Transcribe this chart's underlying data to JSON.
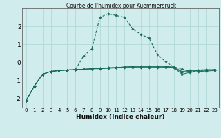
{
  "title": "Courbe de l'humidex pour Kuemmersruck",
  "xlabel": "Humidex (Indice chaleur)",
  "background_color": "#d0ecec",
  "grid_color": "#b0d8d8",
  "line_color": "#1a6b5a",
  "x_values": [
    0,
    1,
    2,
    3,
    4,
    5,
    6,
    7,
    8,
    9,
    10,
    11,
    12,
    13,
    14,
    15,
    16,
    17,
    18,
    19,
    20,
    21,
    22,
    23
  ],
  "series": [
    [
      -2.1,
      -1.3,
      -0.65,
      -0.5,
      -0.45,
      -0.42,
      -0.4,
      -0.38,
      -0.35,
      -0.35,
      -0.33,
      -0.3,
      -0.28,
      -0.28,
      -0.28,
      -0.28,
      -0.28,
      -0.28,
      -0.28,
      -0.65,
      -0.55,
      -0.5,
      -0.48,
      -0.45
    ],
    [
      -2.1,
      -1.3,
      -0.65,
      -0.5,
      -0.45,
      -0.42,
      -0.4,
      0.35,
      0.75,
      2.5,
      2.7,
      2.6,
      2.5,
      1.85,
      1.55,
      1.35,
      0.45,
      0.05,
      -0.25,
      -0.35,
      -0.5,
      -0.48,
      -0.45,
      -0.4
    ],
    [
      -2.1,
      -1.3,
      -0.65,
      -0.5,
      -0.45,
      -0.42,
      -0.4,
      -0.38,
      -0.35,
      -0.33,
      -0.3,
      -0.28,
      -0.25,
      -0.25,
      -0.25,
      -0.25,
      -0.25,
      -0.25,
      -0.28,
      -0.55,
      -0.48,
      -0.45,
      -0.42,
      -0.42
    ],
    [
      -2.1,
      -1.3,
      -0.65,
      -0.5,
      -0.45,
      -0.42,
      -0.4,
      -0.38,
      -0.35,
      -0.33,
      -0.3,
      -0.28,
      -0.25,
      -0.22,
      -0.22,
      -0.22,
      -0.22,
      -0.22,
      -0.25,
      -0.5,
      -0.45,
      -0.42,
      -0.4,
      -0.4
    ]
  ],
  "ylim": [
    -2.5,
    3.0
  ],
  "xlim": [
    -0.5,
    23.5
  ],
  "yticks": [
    -2,
    -1,
    0,
    1,
    2
  ],
  "xticks": [
    0,
    1,
    2,
    3,
    4,
    5,
    6,
    7,
    8,
    9,
    10,
    11,
    12,
    13,
    14,
    15,
    16,
    17,
    18,
    19,
    20,
    21,
    22,
    23
  ]
}
